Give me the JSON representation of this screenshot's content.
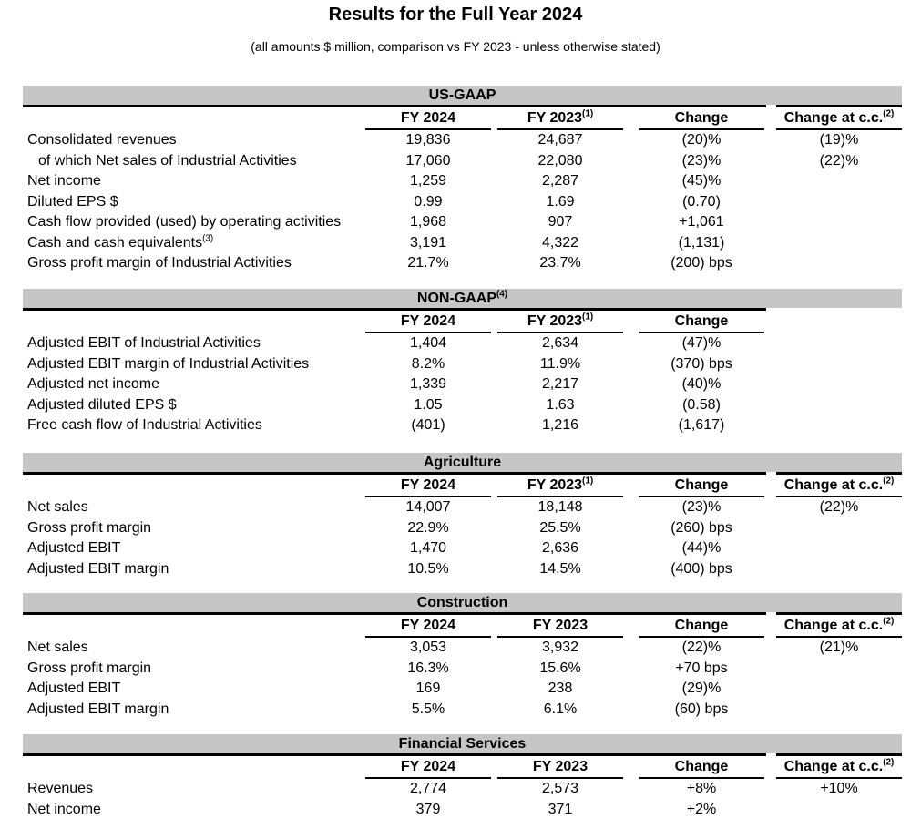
{
  "page": {
    "title": "Results for the Full Year 2024",
    "subtitle": "(all amounts $ million, comparison vs FY 2023 - unless otherwise stated)"
  },
  "colors": {
    "band_bg": "#c6c6c6",
    "rule": "#000000",
    "text": "#000000"
  },
  "sections": [
    {
      "title": "US-GAAP",
      "title_sup": "",
      "has_cc_column": true,
      "columns": [
        {
          "label": "FY 2024",
          "sup": ""
        },
        {
          "label": "FY 2023",
          "sup": "(1)"
        },
        {
          "label": "Change",
          "sup": ""
        },
        {
          "label": "Change at c.c.",
          "sup": "(2)"
        }
      ],
      "rows": [
        {
          "label": "Consolidated revenues",
          "sup": "",
          "indent": false,
          "values": [
            "19,836",
            "24,687",
            "(20)%",
            "(19)%"
          ]
        },
        {
          "label": "of which Net sales of Industrial Activities",
          "sup": "",
          "indent": true,
          "values": [
            "17,060",
            "22,080",
            "(23)%",
            "(22)%"
          ]
        },
        {
          "label": "Net income",
          "sup": "",
          "indent": false,
          "values": [
            "1,259",
            "2,287",
            "(45)%",
            ""
          ]
        },
        {
          "label": "Diluted EPS $",
          "sup": "",
          "indent": false,
          "values": [
            "0.99",
            "1.69",
            "(0.70)",
            ""
          ]
        },
        {
          "label": "Cash flow provided (used) by operating activities",
          "sup": "",
          "indent": false,
          "values": [
            "1,968",
            "907",
            "+1,061",
            ""
          ]
        },
        {
          "label": "Cash and cash equivalents",
          "sup": "(3)",
          "indent": false,
          "values": [
            "3,191",
            "4,322",
            "(1,131)",
            ""
          ]
        },
        {
          "label": "Gross profit margin of Industrial Activities",
          "sup": "",
          "indent": false,
          "values": [
            "21.7%",
            "23.7%",
            "(200) bps",
            ""
          ]
        }
      ]
    },
    {
      "title": "NON-GAAP",
      "title_sup": "(4)",
      "has_cc_column": false,
      "columns": [
        {
          "label": "FY 2024",
          "sup": ""
        },
        {
          "label": "FY 2023",
          "sup": "(1)"
        },
        {
          "label": "Change",
          "sup": ""
        }
      ],
      "rows": [
        {
          "label": "Adjusted EBIT of Industrial Activities",
          "sup": "",
          "indent": false,
          "values": [
            "1,404",
            "2,634",
            "(47)%"
          ]
        },
        {
          "label": "Adjusted EBIT margin of Industrial Activities",
          "sup": "",
          "indent": false,
          "values": [
            "8.2%",
            "11.9%",
            "(370) bps"
          ]
        },
        {
          "label": "Adjusted net income",
          "sup": "",
          "indent": false,
          "values": [
            "1,339",
            "2,217",
            "(40)%"
          ]
        },
        {
          "label": "Adjusted diluted EPS $",
          "sup": "",
          "indent": false,
          "values": [
            "1.05",
            "1.63",
            "(0.58)"
          ]
        },
        {
          "label": "Free cash flow of Industrial Activities",
          "sup": "",
          "indent": false,
          "values": [
            "(401)",
            "1,216",
            "(1,617)"
          ]
        }
      ]
    },
    {
      "title": "Agriculture",
      "title_sup": "",
      "has_cc_column": true,
      "columns": [
        {
          "label": "FY 2024",
          "sup": ""
        },
        {
          "label": "FY 2023",
          "sup": "(1)"
        },
        {
          "label": "Change",
          "sup": ""
        },
        {
          "label": "Change at c.c.",
          "sup": "(2)"
        }
      ],
      "rows": [
        {
          "label": "Net sales",
          "sup": "",
          "indent": false,
          "values": [
            "14,007",
            "18,148",
            "(23)%",
            "(22)%"
          ]
        },
        {
          "label": "Gross profit margin",
          "sup": "",
          "indent": false,
          "values": [
            "22.9%",
            "25.5%",
            "(260) bps",
            ""
          ]
        },
        {
          "label": "Adjusted EBIT",
          "sup": "",
          "indent": false,
          "values": [
            "1,470",
            "2,636",
            "(44)%",
            ""
          ]
        },
        {
          "label": "Adjusted EBIT margin",
          "sup": "",
          "indent": false,
          "values": [
            "10.5%",
            "14.5%",
            "(400) bps",
            ""
          ]
        }
      ]
    },
    {
      "title": "Construction",
      "title_sup": "",
      "has_cc_column": true,
      "columns": [
        {
          "label": "FY 2024",
          "sup": ""
        },
        {
          "label": "FY 2023",
          "sup": ""
        },
        {
          "label": "Change",
          "sup": ""
        },
        {
          "label": "Change at c.c.",
          "sup": "(2)"
        }
      ],
      "rows": [
        {
          "label": "Net sales",
          "sup": "",
          "indent": false,
          "values": [
            "3,053",
            "3,932",
            "(22)%",
            "(21)%"
          ]
        },
        {
          "label": "Gross profit margin",
          "sup": "",
          "indent": false,
          "values": [
            "16.3%",
            "15.6%",
            "+70 bps",
            ""
          ]
        },
        {
          "label": "Adjusted EBIT",
          "sup": "",
          "indent": false,
          "values": [
            "169",
            "238",
            "(29)%",
            ""
          ]
        },
        {
          "label": "Adjusted EBIT margin",
          "sup": "",
          "indent": false,
          "values": [
            "5.5%",
            "6.1%",
            "(60) bps",
            ""
          ]
        }
      ]
    },
    {
      "title": "Financial Services",
      "title_sup": "",
      "has_cc_column": true,
      "columns": [
        {
          "label": "FY 2024",
          "sup": ""
        },
        {
          "label": "FY 2023",
          "sup": ""
        },
        {
          "label": "Change",
          "sup": ""
        },
        {
          "label": "Change at c.c.",
          "sup": "(2)"
        }
      ],
      "rows": [
        {
          "label": "Revenues",
          "sup": "",
          "indent": false,
          "values": [
            "2,774",
            "2,573",
            "+8%",
            "+10%"
          ]
        },
        {
          "label": "Net income",
          "sup": "",
          "indent": false,
          "values": [
            "379",
            "371",
            "+2%",
            ""
          ]
        }
      ]
    }
  ]
}
